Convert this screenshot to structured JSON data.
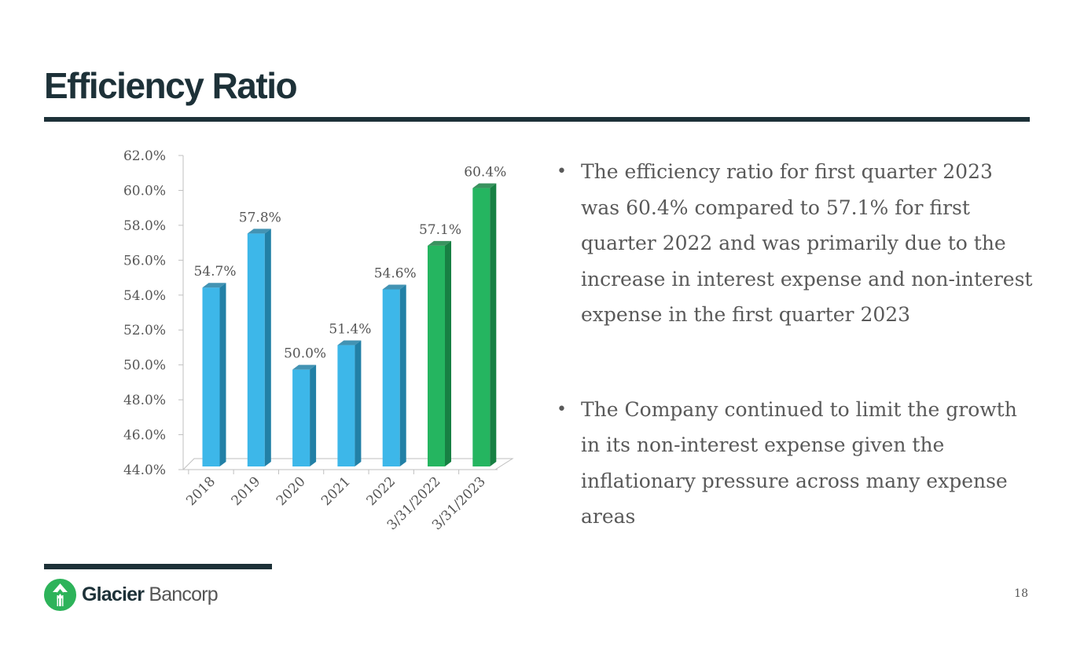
{
  "slide": {
    "title": "Efficiency Ratio",
    "page_number": "18"
  },
  "chart_data": {
    "type": "bar",
    "title": "",
    "xlabel": "",
    "ylabel": "",
    "ylim": [
      44.0,
      62.0
    ],
    "y_ticks": [
      "44.0%",
      "46.0%",
      "48.0%",
      "50.0%",
      "52.0%",
      "54.0%",
      "56.0%",
      "58.0%",
      "60.0%",
      "62.0%"
    ],
    "categories": [
      "2018",
      "2019",
      "2020",
      "2021",
      "2022",
      "3/31/2022",
      "3/31/2023"
    ],
    "values": [
      54.7,
      57.8,
      50.0,
      51.4,
      54.6,
      57.1,
      60.4
    ],
    "labels": [
      "54.7%",
      "57.8%",
      "50.0%",
      "51.4%",
      "54.6%",
      "57.1%",
      "60.4%"
    ],
    "bar_colors": [
      "#3db7e9",
      "#3db7e9",
      "#3db7e9",
      "#3db7e9",
      "#3db7e9",
      "#25b560",
      "#25b560"
    ],
    "bar_side_colors": [
      "#2280a6",
      "#2280a6",
      "#2280a6",
      "#2280a6",
      "#2280a6",
      "#178043",
      "#178043"
    ],
    "grid": false
  },
  "bullets": [
    "The efficiency ratio for first quarter  2023 was 60.4% compared to 57.1% for first quarter 2022 and was primarily due to the increase in interest expense and non-interest expense in the first quarter 2023",
    "The Company continued to limit the growth in its non-interest expense given the inflationary pressure across many expense areas"
  ],
  "bullet_symbol": "•",
  "logo": {
    "name_strong": "Glacier",
    "name_light": " Bancorp",
    "icon": "glacier-bancorp-logo-icon",
    "color": "#2db35a"
  },
  "colors": {
    "title": "#1d3138",
    "text": "#595959"
  }
}
